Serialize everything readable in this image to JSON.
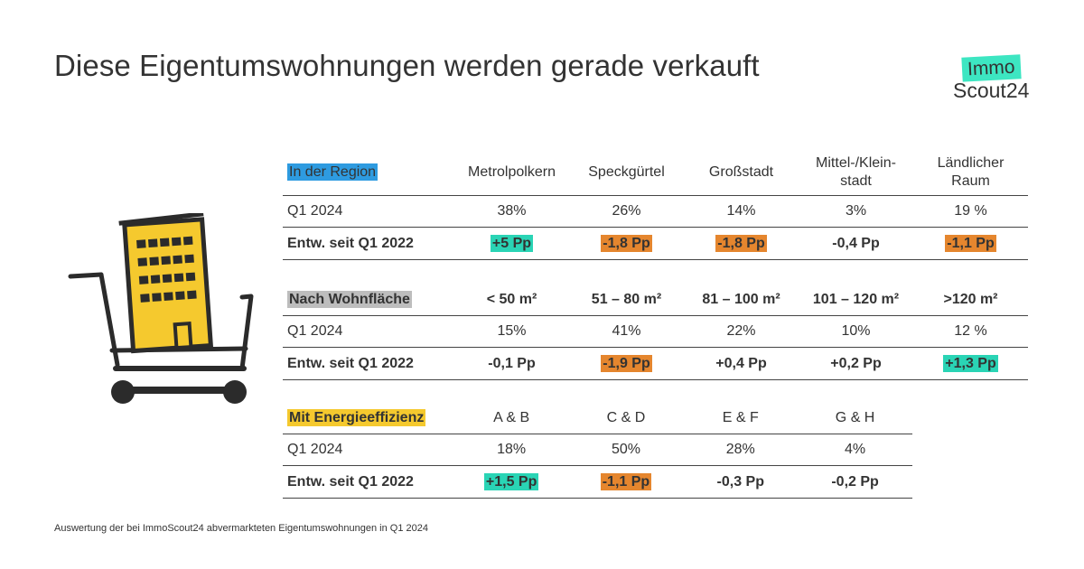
{
  "title": "Diese Eigentumswohnungen werden gerade verkauft",
  "logo": {
    "line1": "Immo",
    "line2": "Scout24",
    "accent_color": "#3de6c2"
  },
  "illustration": {
    "icon": "shopping-cart-with-building-icon",
    "building_color": "#f5c92e"
  },
  "tables": {
    "region": {
      "label": "In der Region",
      "label_color": "#2e9be0",
      "columns": [
        "Metrolpolkern",
        "Speckgürtel",
        "Großstadt",
        "Mittel-/Klein-\nstadt",
        "Ländlicher\nRaum"
      ],
      "q1_label": "Q1 2024",
      "q1_values": [
        "38%",
        "26%",
        "14%",
        "3%",
        "19 %"
      ],
      "change_label": "Entw. seit Q1 2022",
      "change_values": [
        "+5 Pp",
        "-1,8 Pp",
        "-1,8 Pp",
        "-0,4 Pp",
        "-1,1 Pp"
      ],
      "change_highlight": [
        "green",
        "orange",
        "orange",
        "none",
        "orange"
      ]
    },
    "area": {
      "label": "Nach Wohnfläche",
      "label_color": "#bdbdbd",
      "columns": [
        "< 50 m²",
        "51 – 80 m²",
        "81 – 100 m²",
        "101 – 120 m²",
        ">120 m²"
      ],
      "q1_label": "Q1 2024",
      "q1_values": [
        "15%",
        "41%",
        "22%",
        "10%",
        "12 %"
      ],
      "change_label": "Entw. seit Q1 2022",
      "change_values": [
        "-0,1 Pp",
        "-1,9 Pp",
        "+0,4 Pp",
        "+0,2 Pp",
        "+1,3 Pp"
      ],
      "change_highlight": [
        "none",
        "orange",
        "none",
        "none",
        "green"
      ]
    },
    "energy": {
      "label": "Mit Energieeffizienz",
      "label_color": "#f5c92e",
      "columns": [
        "A & B",
        "C & D",
        "E & F",
        "G & H"
      ],
      "q1_label": "Q1 2024",
      "q1_values": [
        "18%",
        "50%",
        "28%",
        "4%"
      ],
      "change_label": "Entw. seit Q1 2022",
      "change_values": [
        "+1,5 Pp",
        "-1,1 Pp",
        "-0,3 Pp",
        "-0,2 Pp"
      ],
      "change_highlight": [
        "green",
        "orange",
        "none",
        "none"
      ]
    }
  },
  "footnote": "Auswertung der bei ImmoScout24 abvermarkteten Eigentumswohnungen in Q1 2024"
}
